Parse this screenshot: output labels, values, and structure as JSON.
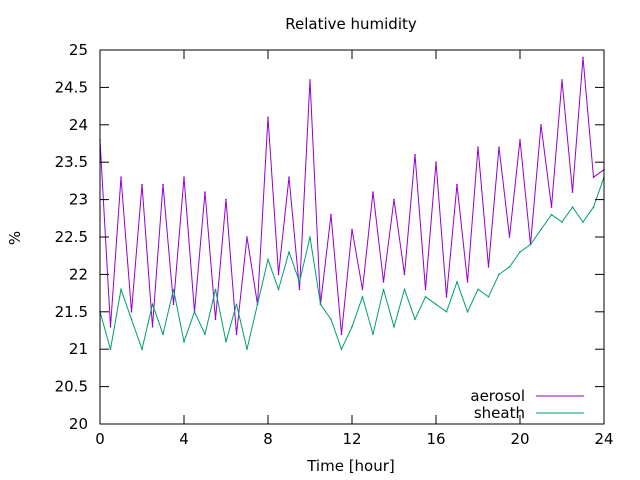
{
  "chart_data": {
    "type": "line",
    "title": "Relative humidity",
    "xlabel": "Time [hour]",
    "ylabel": "%",
    "xlim": [
      0,
      24
    ],
    "ylim": [
      20,
      25
    ],
    "x_ticks": [
      "0",
      "4",
      "8",
      "12",
      "16",
      "20",
      "24"
    ],
    "y_ticks": [
      "20",
      "20.5",
      "21",
      "21.5",
      "22",
      "22.5",
      "23",
      "23.5",
      "24",
      "24.5",
      "25"
    ],
    "grid": false,
    "legend_position": "bottom-right",
    "x": [
      0,
      0.5,
      1,
      1.5,
      2,
      2.5,
      3,
      3.5,
      4,
      4.5,
      5,
      5.5,
      6,
      6.5,
      7,
      7.5,
      8,
      8.5,
      9,
      9.5,
      10,
      10.5,
      11,
      11.5,
      12,
      12.5,
      13,
      13.5,
      14,
      14.5,
      15,
      15.5,
      16,
      16.5,
      17,
      17.5,
      18,
      18.5,
      19,
      19.5,
      20,
      20.5,
      21,
      21.5,
      22,
      22.5,
      23,
      23.5,
      24
    ],
    "series": [
      {
        "name": "aerosol",
        "color": "#9400d3",
        "values": [
          23.8,
          21.3,
          23.3,
          21.5,
          23.2,
          21.3,
          23.2,
          21.6,
          23.3,
          21.5,
          23.1,
          21.4,
          23.0,
          21.2,
          22.5,
          21.6,
          24.1,
          22.0,
          23.3,
          21.8,
          24.6,
          21.6,
          22.8,
          21.2,
          22.6,
          21.8,
          23.1,
          21.9,
          23.0,
          22.0,
          23.6,
          21.8,
          23.5,
          21.7,
          23.2,
          21.9,
          23.7,
          22.1,
          23.7,
          22.5,
          23.8,
          22.4,
          24.0,
          22.9,
          24.6,
          23.1,
          24.9,
          23.3,
          23.4
        ]
      },
      {
        "name": "sheath",
        "color": "#009e73",
        "values": [
          21.5,
          21.0,
          21.8,
          21.4,
          21.0,
          21.6,
          21.2,
          21.8,
          21.1,
          21.5,
          21.2,
          21.8,
          21.1,
          21.6,
          21.0,
          21.6,
          22.2,
          21.8,
          22.3,
          21.9,
          22.5,
          21.6,
          21.4,
          21.0,
          21.3,
          21.7,
          21.2,
          21.8,
          21.3,
          21.8,
          21.4,
          21.7,
          21.6,
          21.5,
          21.9,
          21.5,
          21.8,
          21.7,
          22.0,
          22.1,
          22.3,
          22.4,
          22.6,
          22.8,
          22.7,
          22.9,
          22.7,
          22.9,
          23.3
        ]
      }
    ]
  }
}
